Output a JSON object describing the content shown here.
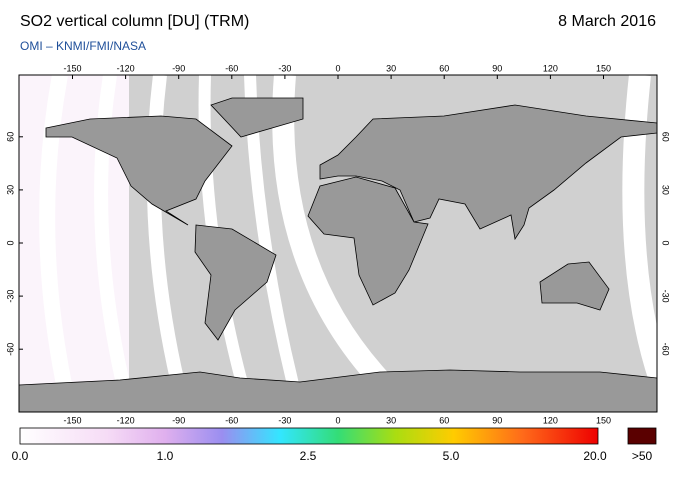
{
  "header": {
    "title": "SO2 vertical column [DU] (TRM)",
    "date": "8 March 2016",
    "source": "OMI  –  KNMI/FMI/NASA"
  },
  "map": {
    "lon_ticks": [
      -150,
      -120,
      -90,
      -60,
      -30,
      0,
      30,
      60,
      90,
      120,
      150
    ],
    "lat_ticks": [
      60,
      30,
      0,
      -30,
      -60
    ]
  },
  "colorbar": {
    "labels": [
      "0.0",
      "1.0",
      "2.5",
      "5.0",
      "20.0",
      ">50"
    ]
  }
}
